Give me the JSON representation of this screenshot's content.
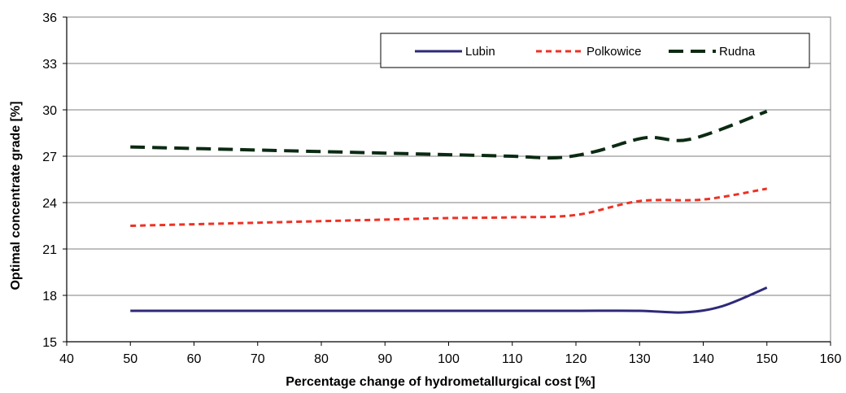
{
  "chart_data": {
    "type": "line",
    "xlabel": "Percentage change of hydrometallurgical cost [%]",
    "ylabel": "Optimal concentrate grade [%]",
    "xlim": [
      40,
      160
    ],
    "ylim": [
      15,
      36
    ],
    "xticks": [
      40,
      50,
      60,
      70,
      80,
      90,
      100,
      110,
      120,
      130,
      140,
      150,
      160
    ],
    "yticks": [
      15,
      18,
      21,
      24,
      27,
      30,
      33,
      36
    ],
    "grid": "horizontal",
    "legend_position": "top-right",
    "series": [
      {
        "name": "Lubin",
        "color": "#2e2a78",
        "style": "solid",
        "x": [
          50,
          60,
          70,
          80,
          90,
          100,
          110,
          120,
          130,
          137,
          143,
          150
        ],
        "y": [
          17.0,
          17.0,
          17.0,
          17.0,
          17.0,
          17.0,
          17.0,
          17.0,
          17.0,
          16.9,
          17.3,
          18.5
        ]
      },
      {
        "name": "Polkowice",
        "color": "#ee3124",
        "style": "short-dash",
        "x": [
          50,
          60,
          70,
          80,
          90,
          100,
          110,
          120,
          130,
          140,
          150
        ],
        "y": [
          22.5,
          22.6,
          22.7,
          22.8,
          22.9,
          23.0,
          23.05,
          23.2,
          24.1,
          24.2,
          24.9
        ]
      },
      {
        "name": "Rudna",
        "color": "#0b2a12",
        "style": "long-dash",
        "x": [
          50,
          60,
          70,
          80,
          90,
          100,
          110,
          117,
          123,
          131,
          138,
          150
        ],
        "y": [
          27.6,
          27.5,
          27.4,
          27.3,
          27.2,
          27.1,
          27.0,
          26.9,
          27.3,
          28.2,
          28.1,
          29.9
        ]
      }
    ]
  }
}
